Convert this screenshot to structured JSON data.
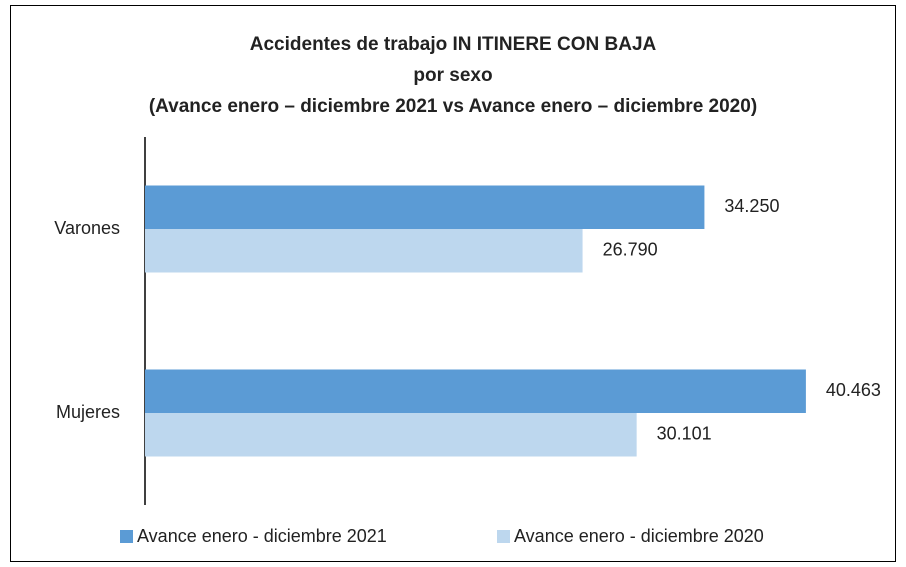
{
  "chart_data": {
    "type": "bar",
    "orientation": "horizontal",
    "title": "Accidentes de trabajo IN ITINERE CON BAJA",
    "subtitle": "por sexo",
    "subtitle2": "(Avance enero – diciembre 2021 vs Avance enero – diciembre 2020)",
    "categories": [
      "Varones",
      "Mujeres"
    ],
    "series": [
      {
        "name": "Avance enero - diciembre 2021",
        "color": "#5b9bd5",
        "values": [
          34250,
          40463
        ],
        "value_labels": [
          "34.250",
          "40.463"
        ]
      },
      {
        "name": "Avance enero - diciembre 2020",
        "color": "#bdd7ee",
        "values": [
          26790,
          30101
        ],
        "value_labels": [
          "26.790",
          "30.101"
        ]
      }
    ],
    "xlim": [
      0,
      45000
    ],
    "legend": "bottom"
  }
}
